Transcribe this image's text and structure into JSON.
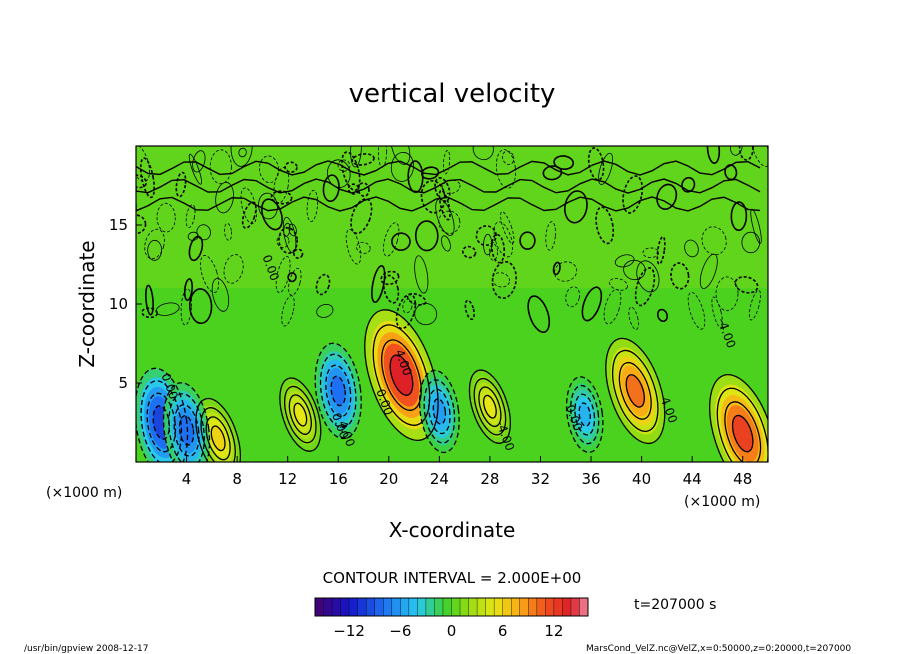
{
  "chart_data": {
    "type": "heatmap",
    "title": "vertical velocity",
    "xlabel": "X-coordinate",
    "ylabel": "Z-coordinate",
    "x_unit_left": "(×1000 m)",
    "x_unit_right": "(×1000 m)",
    "xlim": [
      0,
      50
    ],
    "ylim": [
      0,
      20
    ],
    "x_ticks": [
      "4",
      "8",
      "12",
      "16",
      "20",
      "24",
      "28",
      "32",
      "36",
      "40",
      "44",
      "48"
    ],
    "y_ticks": [
      "5",
      "10",
      "15"
    ],
    "contour_interval_text": "CONTOUR INTERVAL = 2.000E+00",
    "contour_labels": [
      "4.00",
      "0.00",
      "0.00",
      "4.00",
      "0.00",
      "0.00",
      "4.00",
      "-4.00",
      "-4.00",
      "0.00"
    ],
    "time_text": "t=207000 s",
    "colorbar": {
      "range": [
        -16,
        16
      ],
      "ticks": [
        "−12",
        "−6",
        "0",
        "6",
        "12"
      ]
    },
    "features": [
      {
        "kind": "updraft",
        "x": 21,
        "z": 5.5,
        "peak": 14
      },
      {
        "kind": "updraft",
        "x": 39.5,
        "z": 4.5,
        "peak": 10
      },
      {
        "kind": "updraft",
        "x": 48,
        "z": 1.8,
        "peak": 12
      },
      {
        "kind": "updraft",
        "x": 6.5,
        "z": 1.5,
        "peak": 6
      },
      {
        "kind": "updraft",
        "x": 13,
        "z": 3,
        "peak": 5
      },
      {
        "kind": "updraft",
        "x": 28,
        "z": 3.5,
        "peak": 5
      },
      {
        "kind": "downdraft",
        "x": 2,
        "z": 2.5,
        "peak": -10
      },
      {
        "kind": "downdraft",
        "x": 4,
        "z": 2,
        "peak": -8
      },
      {
        "kind": "downdraft",
        "x": 16,
        "z": 4.5,
        "peak": -8
      },
      {
        "kind": "downdraft",
        "x": 24,
        "z": 3.2,
        "peak": -6
      },
      {
        "kind": "downdraft",
        "x": 35.5,
        "z": 3,
        "peak": -5
      }
    ]
  },
  "footer": {
    "left": "/usr/bin/gpview  2008-12-17",
    "right": "MarsCond_VelZ.nc@VelZ,x=0:50000,z=0:20000,t=207000"
  }
}
